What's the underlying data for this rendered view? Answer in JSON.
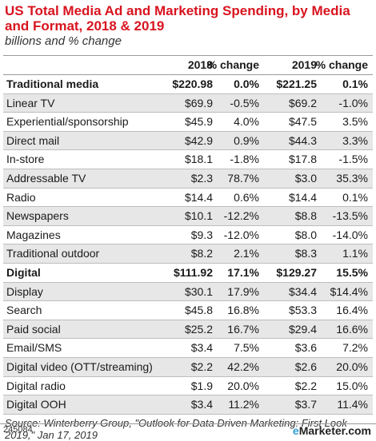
{
  "title": "US Total Media Ad and Marketing Spending, by Media and Format, 2018 & 2019",
  "subtitle": "billions and % change",
  "headers": [
    "",
    "2018",
    "% change",
    "2019",
    "% change"
  ],
  "rows": [
    {
      "label": "Traditional media",
      "v2018": "$220.98",
      "c2018": "0.0%",
      "v2019": "$221.25",
      "c2019": "0.1%",
      "bold": true
    },
    {
      "label": "Linear TV",
      "v2018": "$69.9",
      "c2018": "-0.5%",
      "v2019": "$69.2",
      "c2019": "-1.0%"
    },
    {
      "label": "Experiential/sponsorship",
      "v2018": "$45.9",
      "c2018": "4.0%",
      "v2019": "$47.5",
      "c2019": "3.5%"
    },
    {
      "label": "Direct mail",
      "v2018": "$42.9",
      "c2018": "0.9%",
      "v2019": "$44.3",
      "c2019": "3.3%"
    },
    {
      "label": "In-store",
      "v2018": "$18.1",
      "c2018": "-1.8%",
      "v2019": "$17.8",
      "c2019": "-1.5%"
    },
    {
      "label": "Addressable TV",
      "v2018": "$2.3",
      "c2018": "78.7%",
      "v2019": "$3.0",
      "c2019": "35.3%"
    },
    {
      "label": "Radio",
      "v2018": "$14.4",
      "c2018": "0.6%",
      "v2019": "$14.4",
      "c2019": "0.1%"
    },
    {
      "label": "Newspapers",
      "v2018": "$10.1",
      "c2018": "-12.2%",
      "v2019": "$8.8",
      "c2019": "-13.5%"
    },
    {
      "label": "Magazines",
      "v2018": "$9.3",
      "c2018": "-12.0%",
      "v2019": "$8.0",
      "c2019": "-14.0%"
    },
    {
      "label": "Traditional outdoor",
      "v2018": "$8.2",
      "c2018": "2.1%",
      "v2019": "$8.3",
      "c2019": "1.1%"
    },
    {
      "label": "Digital",
      "v2018": "$111.92",
      "c2018": "17.1%",
      "v2019": "$129.27",
      "c2019": "15.5%",
      "bold": true
    },
    {
      "label": "Display",
      "v2018": "$30.1",
      "c2018": "17.9%",
      "v2019": "$34.4",
      "c2019": "$14.4%"
    },
    {
      "label": "Search",
      "v2018": "$45.8",
      "c2018": "16.8%",
      "v2019": "$53.3",
      "c2019": "16.4%"
    },
    {
      "label": "Paid social",
      "v2018": "$25.2",
      "c2018": "16.7%",
      "v2019": "$29.4",
      "c2019": "16.6%"
    },
    {
      "label": "Email/SMS",
      "v2018": "$3.4",
      "c2018": "7.5%",
      "v2019": "$3.6",
      "c2019": "7.2%"
    },
    {
      "label": "Digital video (OTT/streaming)",
      "v2018": "$2.2",
      "c2018": "42.2%",
      "v2019": "$2.6",
      "c2019": "20.0%"
    },
    {
      "label": "Digital radio",
      "v2018": "$1.9",
      "c2018": "20.0%",
      "v2019": "$2.2",
      "c2019": "15.0%"
    },
    {
      "label": "Digital OOH",
      "v2018": "$3.4",
      "c2018": "11.2%",
      "v2019": "$3.7",
      "c2019": "11.4%"
    }
  ],
  "source": "Source: Winterberry Group, \"Outlook for Data Driven Marketing: First Look 2019,\" Jan 17, 2019",
  "chart_id": "245084",
  "logo": {
    "prefix": "e",
    "rest": "Marketer",
    "suffix": ".com"
  },
  "colors": {
    "title": "#d8141f",
    "alt_row": "#e7e7e7",
    "logo_accent": "#2f9fd8"
  },
  "chart_data": {
    "type": "table",
    "title": "US Total Media Ad and Marketing Spending, by Media and Format, 2018 & 2019",
    "subtitle": "billions and % change",
    "columns": [
      "2018",
      "% change",
      "2019",
      "% change"
    ],
    "categories": [
      "Traditional media",
      "Linear TV",
      "Experiential/sponsorship",
      "Direct mail",
      "In-store",
      "Addressable TV",
      "Radio",
      "Newspapers",
      "Magazines",
      "Traditional outdoor",
      "Digital",
      "Display",
      "Search",
      "Paid social",
      "Email/SMS",
      "Digital video (OTT/streaming)",
      "Digital radio",
      "Digital OOH"
    ],
    "series": [
      {
        "name": "2018",
        "values": [
          220.98,
          69.9,
          45.9,
          42.9,
          18.1,
          2.3,
          14.4,
          10.1,
          9.3,
          8.2,
          111.92,
          30.1,
          45.8,
          25.2,
          3.4,
          2.2,
          1.9,
          3.4
        ]
      },
      {
        "name": "% change",
        "values": [
          0.0,
          -0.5,
          4.0,
          0.9,
          -1.8,
          78.7,
          0.6,
          -12.2,
          -12.0,
          2.1,
          17.1,
          17.9,
          16.8,
          16.7,
          7.5,
          42.2,
          20.0,
          11.2
        ]
      },
      {
        "name": "2019",
        "values": [
          221.25,
          69.2,
          47.5,
          44.3,
          17.8,
          3.0,
          14.4,
          8.8,
          8.0,
          8.3,
          129.27,
          34.4,
          53.3,
          29.4,
          3.6,
          2.6,
          2.2,
          3.7
        ]
      },
      {
        "name": "% change",
        "values": [
          0.1,
          -1.0,
          3.5,
          3.3,
          -1.5,
          35.3,
          0.1,
          -13.5,
          -14.0,
          1.1,
          15.5,
          14.4,
          16.4,
          16.6,
          7.2,
          20.0,
          15.0,
          11.4
        ]
      }
    ]
  }
}
